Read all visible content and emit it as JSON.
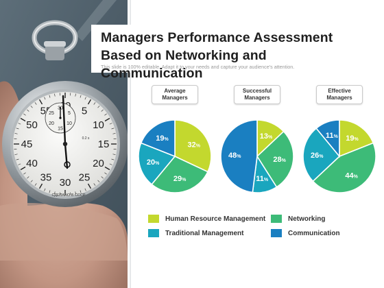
{
  "title": "Managers Performance Assessment Based on Networking and Communication",
  "subtitle": "This slide is 100% editable. Adapt it to your needs and capture your audience's attention.",
  "photo": {
    "dial_numbers": [
      "60",
      "5",
      "10",
      "15",
      "20",
      "25",
      "30",
      "35",
      "40",
      "45",
      "50",
      "55"
    ],
    "subdial_numbers": [
      "30",
      "5",
      "10",
      "15",
      "20",
      "25"
    ],
    "dial_mark": "0.2 s",
    "brand": "СДЕЛАНО В СССР"
  },
  "chart_data": [
    {
      "type": "pie",
      "title": "Average\nManagers",
      "slices": [
        {
          "label": "Human Resource Management",
          "value": 32,
          "display": "32%"
        },
        {
          "label": "Networking",
          "value": 29,
          "display": "29%"
        },
        {
          "label": "Traditional Management",
          "value": 20,
          "display": "20%"
        },
        {
          "label": "Communication",
          "value": 19,
          "display": "19%"
        }
      ]
    },
    {
      "type": "pie",
      "title": "Successful\nManagers",
      "slices": [
        {
          "label": "Human Resource Management",
          "value": 13,
          "display": "13%"
        },
        {
          "label": "Networking",
          "value": 28,
          "display": "28%"
        },
        {
          "label": "Traditional Management",
          "value": 11,
          "display": "11%"
        },
        {
          "label": "Communication",
          "value": 48,
          "display": "48%"
        }
      ]
    },
    {
      "type": "pie",
      "title": "Effective\nManagers",
      "slices": [
        {
          "label": "Human Resource Management",
          "value": 19,
          "display": "19%"
        },
        {
          "label": "Networking",
          "value": 44,
          "display": "44%"
        },
        {
          "label": "Traditional Management",
          "value": 26,
          "display": "26%"
        },
        {
          "label": "Communication",
          "value": 11,
          "display": "11%"
        }
      ]
    }
  ],
  "legend": [
    {
      "label": "Human Resource Management",
      "color": "#c3d82e"
    },
    {
      "label": "Networking",
      "color": "#3dbb78"
    },
    {
      "label": "Traditional Management",
      "color": "#1aa6be"
    },
    {
      "label": "Communication",
      "color": "#1a7fc1"
    }
  ],
  "colors": {
    "hrm": "#c3d82e",
    "networking": "#3dbb78",
    "traditional": "#1aa6be",
    "communication": "#1a7fc1",
    "text": "#1f1f1f"
  }
}
